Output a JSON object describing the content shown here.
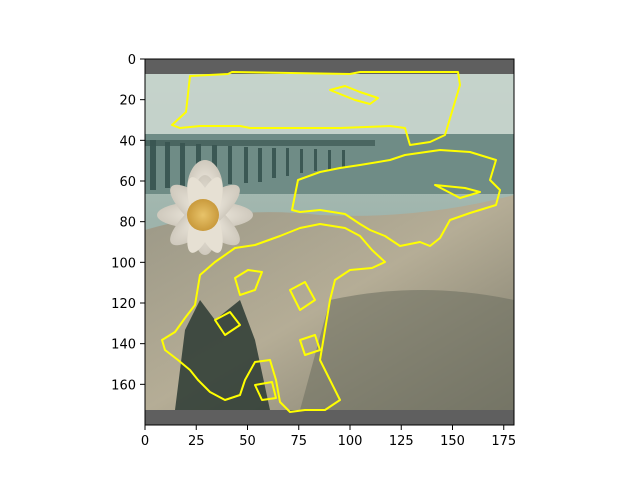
{
  "chart_data": {
    "type": "image",
    "title": "",
    "xlabel": "",
    "ylabel": "",
    "xlim": [
      0,
      180
    ],
    "ylim": [
      180,
      0
    ],
    "x_ticks": [
      0,
      25,
      50,
      75,
      100,
      125,
      150,
      175
    ],
    "y_ticks": [
      0,
      20,
      40,
      60,
      80,
      100,
      120,
      140,
      160
    ],
    "grid": false,
    "legend": "none",
    "image_content": "photo of a white daisy-like flower in the foreground with a blurred beach, pier and sky behind, overlaid with yellow segmentation contour outlines",
    "overlay_color": "#ffff00",
    "letterbox_color": "#5f5f5f"
  }
}
